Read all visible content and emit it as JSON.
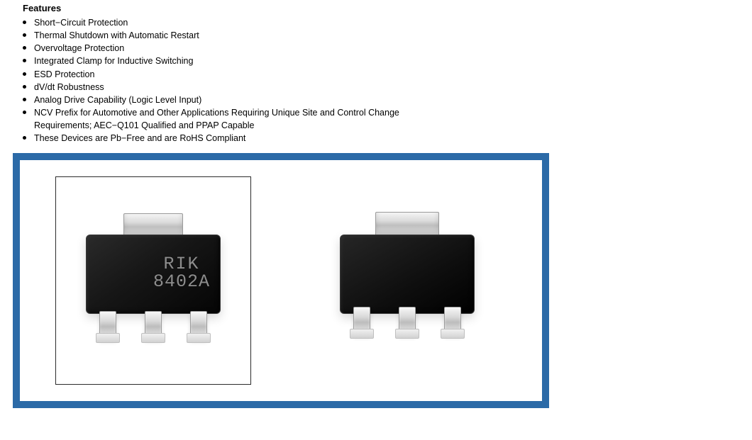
{
  "features": {
    "heading": "Features",
    "items": [
      "Short−Circuit Protection",
      "Thermal Shutdown with Automatic Restart",
      "Overvoltage Protection",
      "Integrated Clamp for Inductive Switching",
      "ESD Protection",
      "dV/dt Robustness",
      "Analog Drive Capability (Logic Level Input)",
      "NCV Prefix for Automotive and Other Applications Requiring Unique Site and Control Change Requirements; AEC−Q101 Qualified and PPAP Capable",
      "These Devices are Pb−Free and are RoHS Compliant"
    ]
  },
  "panel": {
    "border_color": "#2b6aa7",
    "chip_left": {
      "has_frame": true,
      "marking_line1": "RIK",
      "marking_line2": "8402A",
      "body_color": "#111111",
      "metal_color": "#d4d4d4"
    },
    "chip_right": {
      "has_frame": false,
      "marking_line1": "",
      "marking_line2": "",
      "body_color": "#0e0e0e",
      "metal_color": "#d4d4d4"
    }
  }
}
